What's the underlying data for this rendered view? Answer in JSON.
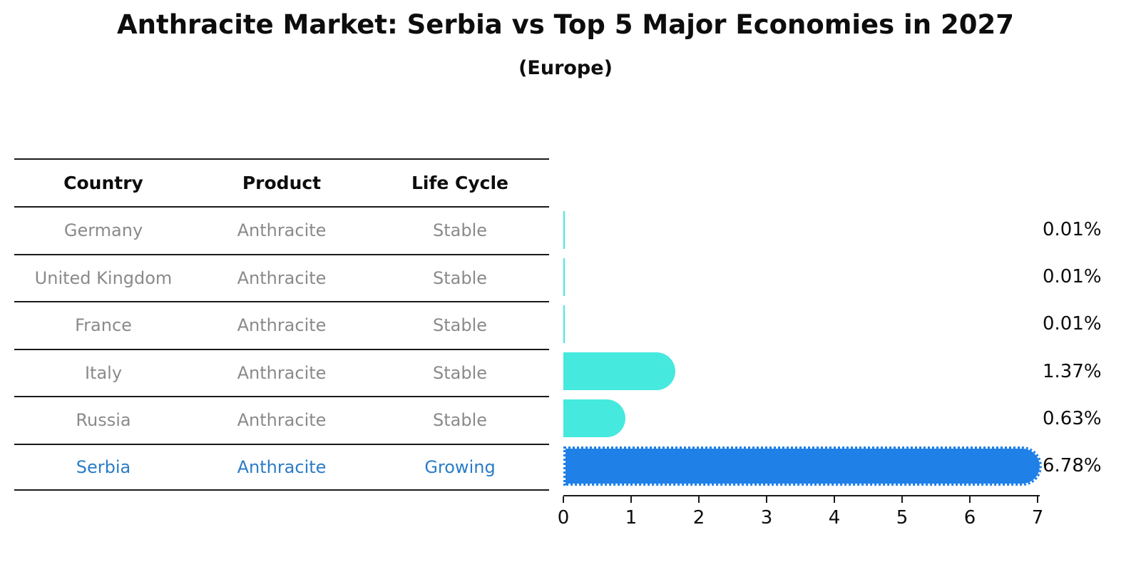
{
  "title": "Anthracite Market: Serbia vs Top 5 Major Economies in 2027",
  "subtitle": "(Europe)",
  "table": {
    "headers": [
      "Country",
      "Product",
      "Life Cycle"
    ],
    "rows": [
      {
        "country": "Germany",
        "product": "Anthracite",
        "life_cycle": "Stable",
        "highlighted": false
      },
      {
        "country": "United Kingdom",
        "product": "Anthracite",
        "life_cycle": "Stable",
        "highlighted": false
      },
      {
        "country": "France",
        "product": "Anthracite",
        "life_cycle": "Stable",
        "highlighted": false
      },
      {
        "country": "Italy",
        "product": "Anthracite",
        "life_cycle": "Stable",
        "highlighted": false
      },
      {
        "country": "Russia",
        "product": "Anthracite",
        "life_cycle": "Stable",
        "highlighted": false
      },
      {
        "country": "Serbia",
        "product": "Anthracite",
        "life_cycle": "Growing",
        "highlighted": true
      }
    ]
  },
  "chart_data": {
    "type": "bar",
    "orientation": "horizontal",
    "title": "Anthracite Market: Serbia vs Top 5 Major Economies in 2027",
    "subtitle": "(Europe)",
    "categories": [
      "Germany",
      "United Kingdom",
      "France",
      "Italy",
      "Russia",
      "Serbia"
    ],
    "values": [
      0.01,
      0.01,
      0.01,
      1.37,
      0.63,
      6.78
    ],
    "value_labels": [
      "0.01%",
      "0.01%",
      "0.01%",
      "1.37%",
      "0.63%",
      "6.78%"
    ],
    "unit": "%",
    "x_ticks": [
      0,
      1,
      2,
      3,
      4,
      5,
      6,
      7
    ],
    "xlim": [
      0,
      7
    ],
    "grid": false,
    "legend": false,
    "highlight_index": 5
  },
  "colors": {
    "stable_bar": "#45e9dd",
    "highlight_bar": "#1f80e8",
    "highlight_text": "#2a7cc7",
    "row_text": "#8a8a8a",
    "header_text": "#0d0d0d",
    "axis": "#1a1a1a"
  }
}
